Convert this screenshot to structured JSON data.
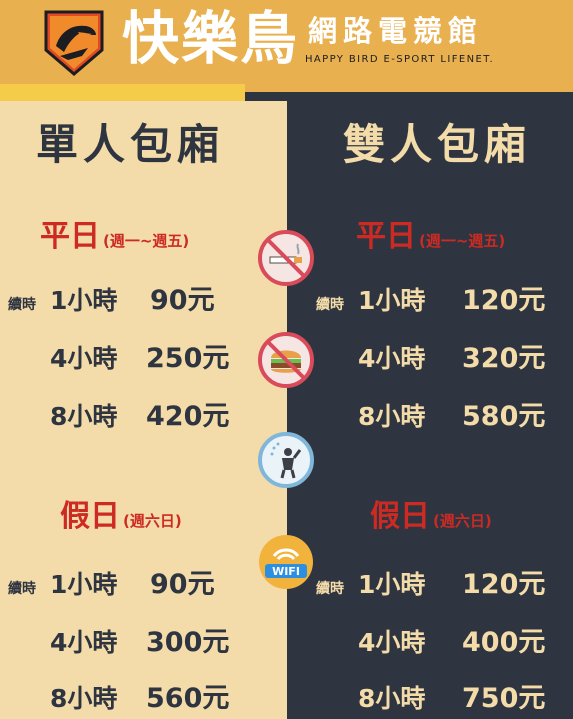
{
  "brand": {
    "name": "快樂鳥",
    "subtitle": "網路電競館",
    "english": "HAPPY BIRD E-SPORT LIFENET."
  },
  "single_room": {
    "title": "單人包廂",
    "weekday": {
      "label": "平日",
      "range": "(週一~週五)",
      "rows": [
        {
          "tag": "續時",
          "duration": "1小時",
          "price": "90元"
        },
        {
          "tag": "",
          "duration": "4小時",
          "price": "250元"
        },
        {
          "tag": "",
          "duration": "8小時",
          "price": "420元"
        }
      ]
    },
    "holiday": {
      "label": "假日",
      "range": "(週六日)",
      "rows": [
        {
          "tag": "續時",
          "duration": "1小時",
          "price": "90元"
        },
        {
          "tag": "",
          "duration": "4小時",
          "price": "300元"
        },
        {
          "tag": "",
          "duration": "8小時",
          "price": "560元"
        }
      ]
    }
  },
  "double_room": {
    "title": "雙人包廂",
    "weekday": {
      "label": "平日",
      "range": "(週一~週五)",
      "rows": [
        {
          "tag": "續時",
          "duration": "1小時",
          "price": "120元"
        },
        {
          "tag": "",
          "duration": "4小時",
          "price": "320元"
        },
        {
          "tag": "",
          "duration": "8小時",
          "price": "580元"
        }
      ]
    },
    "holiday": {
      "label": "假日",
      "range": "(週六日)",
      "rows": [
        {
          "tag": "續時",
          "duration": "1小時",
          "price": "120元"
        },
        {
          "tag": "",
          "duration": "4小時",
          "price": "400元"
        },
        {
          "tag": "",
          "duration": "8小時",
          "price": "750元"
        }
      ]
    }
  },
  "icons": {
    "no_smoking": "no-smoking-icon",
    "no_food": "no-food-icon",
    "shower": "shower-icon",
    "wifi": "wifi-icon",
    "wifi_text": "WIFI"
  },
  "colors": {
    "header_orange": "#e9b04f",
    "cream": "#f3dca9",
    "navy": "#2f3540",
    "red": "#cc2a23"
  }
}
